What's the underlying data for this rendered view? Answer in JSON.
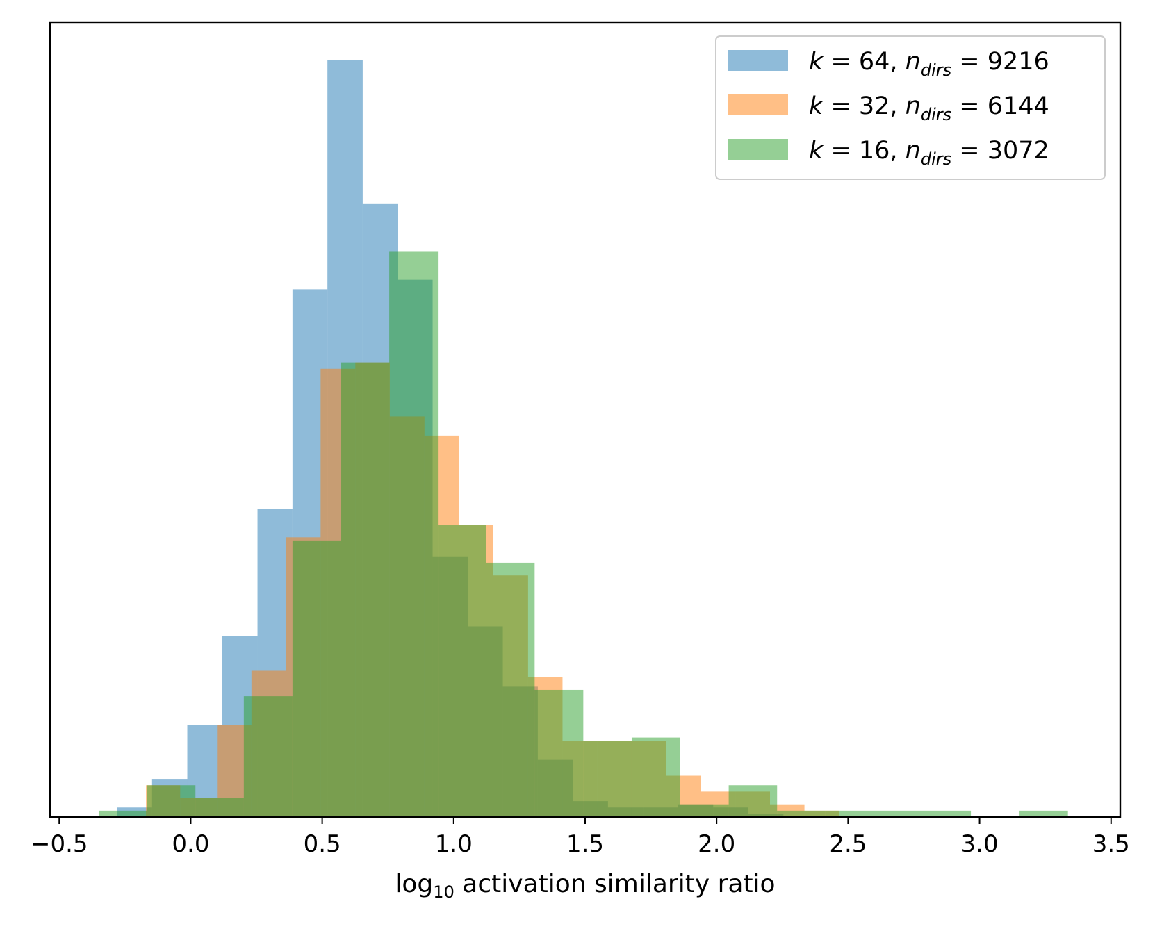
{
  "chart_data": {
    "type": "histogram",
    "xlabel": {
      "prefix": "log",
      "subscript": "10",
      "suffix": " activation similarity ratio"
    },
    "xlim": [
      -0.535,
      3.535
    ],
    "ylim": [
      0,
      50
    ],
    "y_tick_labels": false,
    "x_ticks": [
      {
        "value": -0.5,
        "label": "−0.5"
      },
      {
        "value": 0.0,
        "label": "0.0"
      },
      {
        "value": 0.5,
        "label": "0.5"
      },
      {
        "value": 1.0,
        "label": "1.0"
      },
      {
        "value": 1.5,
        "label": "1.5"
      },
      {
        "value": 2.0,
        "label": "2.0"
      },
      {
        "value": 2.5,
        "label": "2.5"
      },
      {
        "value": 3.0,
        "label": "3.0"
      },
      {
        "value": 3.5,
        "label": "3.5"
      }
    ],
    "legend_position": "upper-right",
    "series": [
      {
        "color": "#1f77b4",
        "legend": {
          "k": "64",
          "ndirs": "9216"
        },
        "bins": [
          [
            -0.28,
            -0.147,
            0.6
          ],
          [
            -0.147,
            -0.013,
            2.4
          ],
          [
            -0.013,
            0.12,
            5.8
          ],
          [
            0.12,
            0.254,
            11.4
          ],
          [
            0.254,
            0.387,
            19.4
          ],
          [
            0.387,
            0.52,
            33.2
          ],
          [
            0.52,
            0.654,
            47.6
          ],
          [
            0.654,
            0.787,
            38.6
          ],
          [
            0.787,
            0.92,
            33.8
          ],
          [
            0.92,
            1.054,
            16.4
          ],
          [
            1.054,
            1.187,
            12.0
          ],
          [
            1.187,
            1.32,
            8.2
          ],
          [
            1.32,
            1.454,
            3.6
          ],
          [
            1.454,
            1.587,
            1.0
          ],
          [
            1.587,
            1.72,
            0.6
          ],
          [
            1.72,
            1.854,
            0.6
          ],
          [
            1.854,
            1.987,
            0.8
          ],
          [
            1.987,
            2.12,
            0.6
          ],
          [
            2.12,
            2.254,
            0.2
          ]
        ]
      },
      {
        "color": "#ff7f0e",
        "legend": {
          "k": "32",
          "ndirs": "6144"
        },
        "bins": [
          [
            -0.17,
            -0.04,
            2.0
          ],
          [
            -0.04,
            0.1,
            1.2
          ],
          [
            0.1,
            0.231,
            5.8
          ],
          [
            0.231,
            0.363,
            9.2
          ],
          [
            0.363,
            0.494,
            17.6
          ],
          [
            0.494,
            0.626,
            28.2
          ],
          [
            0.626,
            0.757,
            28.6
          ],
          [
            0.757,
            0.889,
            25.2
          ],
          [
            0.889,
            1.02,
            24.0
          ],
          [
            1.02,
            1.151,
            18.4
          ],
          [
            1.151,
            1.283,
            15.2
          ],
          [
            1.283,
            1.414,
            8.8
          ],
          [
            1.414,
            1.546,
            4.8
          ],
          [
            1.546,
            1.677,
            4.8
          ],
          [
            1.677,
            1.809,
            4.8
          ],
          [
            1.809,
            1.94,
            2.6
          ],
          [
            1.94,
            2.071,
            1.6
          ],
          [
            2.071,
            2.203,
            1.6
          ],
          [
            2.203,
            2.334,
            0.8
          ],
          [
            2.334,
            2.466,
            0.4
          ]
        ]
      },
      {
        "color": "#2ca02c",
        "legend": {
          "k": "16",
          "ndirs": "3072"
        },
        "bins": [
          [
            -0.35,
            -0.166,
            0.4
          ],
          [
            -0.166,
            0.018,
            2.0
          ],
          [
            0.018,
            0.202,
            1.2
          ],
          [
            0.202,
            0.387,
            7.6
          ],
          [
            0.387,
            0.571,
            17.4
          ],
          [
            0.571,
            0.755,
            28.6
          ],
          [
            0.755,
            0.94,
            35.6
          ],
          [
            0.94,
            1.124,
            18.4
          ],
          [
            1.124,
            1.308,
            16.0
          ],
          [
            1.308,
            1.493,
            8.0
          ],
          [
            1.493,
            1.677,
            4.8
          ],
          [
            1.677,
            1.861,
            5.0
          ],
          [
            1.861,
            2.046,
            0.8
          ],
          [
            2.046,
            2.23,
            2.0
          ],
          [
            2.23,
            2.414,
            0.4
          ],
          [
            2.414,
            2.599,
            0.4
          ],
          [
            2.599,
            2.783,
            0.4
          ],
          [
            2.783,
            2.967,
            0.4
          ],
          [
            2.967,
            3.152,
            0.0
          ],
          [
            3.152,
            3.336,
            0.4
          ]
        ]
      }
    ]
  }
}
